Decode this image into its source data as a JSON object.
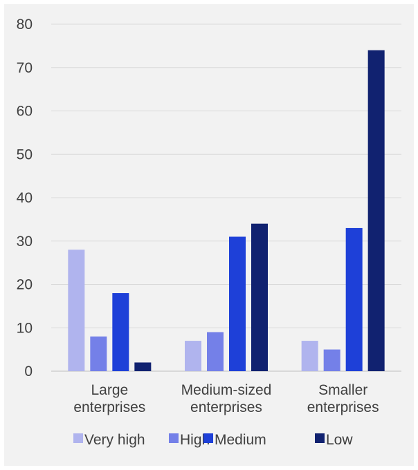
{
  "chart_data": {
    "type": "bar",
    "title": "",
    "xlabel": "",
    "ylabel": "",
    "ylim": [
      0,
      80
    ],
    "yticks": [
      0,
      10,
      20,
      30,
      40,
      50,
      60,
      70,
      80
    ],
    "grid": true,
    "legend_position": "bottom",
    "categories": [
      [
        "Large",
        "enterprises"
      ],
      [
        "Medium-sized",
        "enterprises"
      ],
      [
        "Smaller",
        "enterprises"
      ]
    ],
    "series": [
      {
        "name": "Very high",
        "color": "#b0b4ee",
        "values": [
          28,
          7,
          7
        ]
      },
      {
        "name": "High",
        "color": "#7480e8",
        "values": [
          8,
          9,
          5
        ]
      },
      {
        "name": "Medium",
        "color": "#1e40d8",
        "values": [
          18,
          31,
          33
        ]
      },
      {
        "name": "Low",
        "color": "#112270",
        "values": [
          2,
          34,
          74
        ]
      }
    ]
  }
}
